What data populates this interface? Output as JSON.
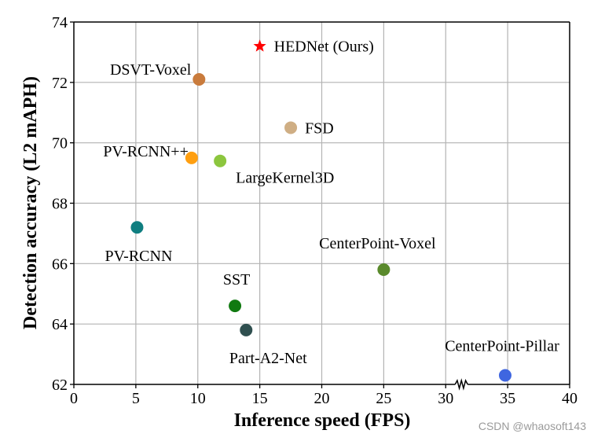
{
  "chart_data": {
    "type": "scatter",
    "title": "",
    "xlabel": "Inference speed (FPS)",
    "ylabel": "Detection accuracy (L2 mAPH)",
    "xlim": [
      0,
      40
    ],
    "ylim": [
      62,
      74
    ],
    "xticks": [
      0,
      5,
      10,
      15,
      20,
      25,
      30,
      35,
      40
    ],
    "xtick_labels": [
      "0",
      "5",
      "10",
      "15",
      "20",
      "25",
      "30",
      "35",
      "40"
    ],
    "yticks": [
      62,
      64,
      66,
      68,
      70,
      72,
      74
    ],
    "ytick_labels": [
      "62",
      "64",
      "66",
      "68",
      "70",
      "72",
      "74"
    ],
    "grid": true,
    "axis_break": {
      "axis": "x",
      "between": [
        30,
        34
      ]
    },
    "points": [
      {
        "name": "HEDNet (Ours)",
        "label": "HEDNet (Ours)",
        "x": 15.0,
        "y": 73.2,
        "color": "#ff0000",
        "marker": "star",
        "label_side": "right"
      },
      {
        "name": "DSVT-Voxel",
        "label": "DSVT-Voxel",
        "x": 10.1,
        "y": 72.1,
        "color": "#c97b3c",
        "marker": "circle",
        "label_side": "left"
      },
      {
        "name": "FSD",
        "label": "FSD",
        "x": 17.5,
        "y": 70.5,
        "color": "#cfae84",
        "marker": "circle",
        "label_side": "right"
      },
      {
        "name": "PV-RCNN++",
        "label": "PV-RCNN++",
        "x": 9.5,
        "y": 69.5,
        "color": "#ff9f10",
        "marker": "circle",
        "label_side": "left"
      },
      {
        "name": "LargeKernel3D",
        "label": "LargeKernel3D",
        "x": 11.8,
        "y": 69.4,
        "color": "#8cc63e",
        "marker": "circle",
        "label_side": "below-right"
      },
      {
        "name": "PV-RCNN",
        "label": "PV-RCNN",
        "x": 5.1,
        "y": 67.2,
        "color": "#0f7e80",
        "marker": "circle",
        "label_side": "below"
      },
      {
        "name": "CenterPoint-Voxel",
        "label": "CenterPoint-Voxel",
        "x": 25.0,
        "y": 65.8,
        "color": "#5a8a2c",
        "marker": "circle",
        "label_side": "above"
      },
      {
        "name": "SST",
        "label": "SST",
        "x": 13.0,
        "y": 64.6,
        "color": "#117a11",
        "marker": "circle",
        "label_side": "above"
      },
      {
        "name": "Part-A2-Net",
        "label": "Part-A2-Net",
        "x": 13.9,
        "y": 63.8,
        "color": "#2f4f4f",
        "marker": "circle",
        "label_side": "below"
      },
      {
        "name": "CenterPoint-Pillar",
        "label": "CenterPoint-Pillar",
        "x": 34.8,
        "y": 62.3,
        "color": "#3f66e0",
        "marker": "circle",
        "label_side": "above"
      }
    ]
  },
  "watermark": "CSDN @whaosoft143"
}
